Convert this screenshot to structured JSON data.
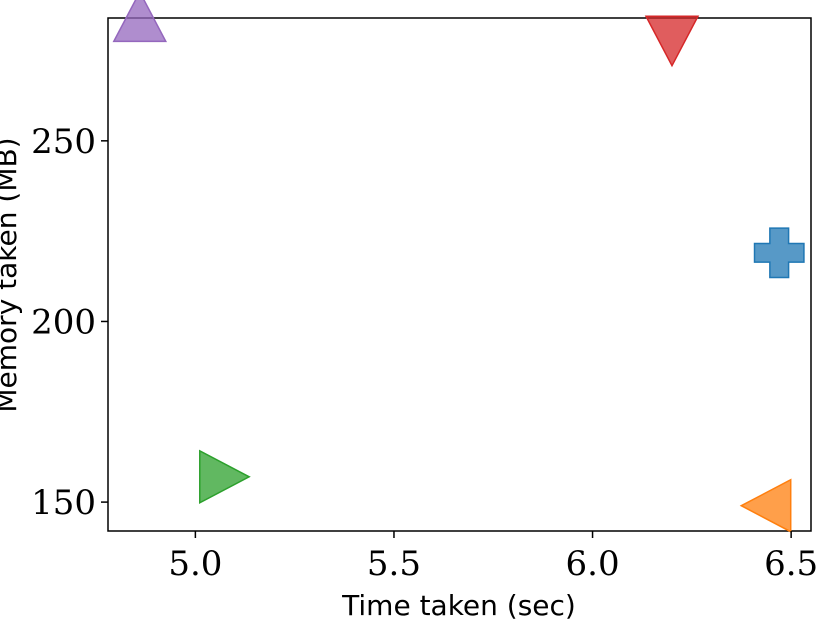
{
  "chart_data": {
    "type": "scatter",
    "title": "",
    "xlabel": "Time taken (sec)",
    "ylabel": "Memory taken (MB)",
    "xlim": [
      4.78,
      6.55
    ],
    "ylim": [
      142,
      284
    ],
    "xticks": [
      5.0,
      5.5,
      6.0,
      6.5
    ],
    "xtick_labels": [
      "5.0",
      "5.5",
      "6.0",
      "6.5"
    ],
    "yticks": [
      150,
      200,
      250
    ],
    "ytick_labels": [
      "150",
      "200",
      "250"
    ],
    "grid": false,
    "legend": "none",
    "points": [
      {
        "x": 4.86,
        "y": 284,
        "marker": "triangle-up",
        "color": "#9467bd"
      },
      {
        "x": 6.2,
        "y": 278,
        "marker": "triangle-down",
        "color": "#d62728"
      },
      {
        "x": 6.47,
        "y": 219,
        "marker": "plus",
        "color": "#1f77b4"
      },
      {
        "x": 5.07,
        "y": 157,
        "marker": "triangle-right",
        "color": "#2ca02c"
      },
      {
        "x": 6.44,
        "y": 149,
        "marker": "triangle-left",
        "color": "#ff7f0e"
      }
    ]
  }
}
